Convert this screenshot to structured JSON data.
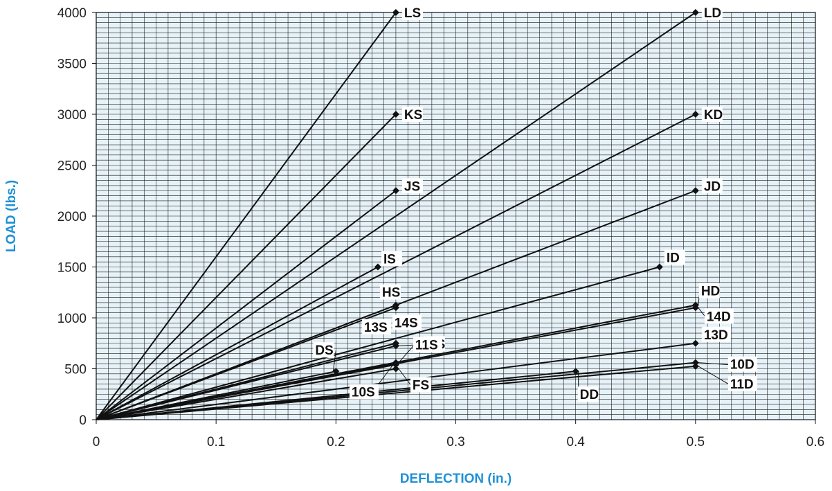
{
  "chart_data": {
    "type": "line",
    "xlabel": "DEFLECTION (in.)",
    "ylabel": "LOAD (lbs.)",
    "xlim": [
      0,
      0.6
    ],
    "ylim": [
      0,
      4000
    ],
    "x_ticks": [
      "0",
      "0.1",
      "0.2",
      "0.3",
      "0.4",
      "0.5",
      "0.6"
    ],
    "y_ticks": [
      "0",
      "500",
      "1000",
      "1500",
      "2000",
      "2500",
      "3000",
      "3500",
      "4000"
    ],
    "grid": true,
    "colors": {
      "plot_background": "#e6f2f8",
      "grid": "#1a1a1a",
      "line": "#111111",
      "axis_title": "#1e90d6"
    },
    "series": [
      {
        "name": "LS",
        "x": [
          0,
          0.25
        ],
        "y": [
          0,
          4000
        ]
      },
      {
        "name": "LD",
        "x": [
          0,
          0.5
        ],
        "y": [
          0,
          4000
        ]
      },
      {
        "name": "KS",
        "x": [
          0,
          0.25
        ],
        "y": [
          0,
          3000
        ]
      },
      {
        "name": "KD",
        "x": [
          0,
          0.5
        ],
        "y": [
          0,
          3000
        ]
      },
      {
        "name": "JS",
        "x": [
          0,
          0.25
        ],
        "y": [
          0,
          2250
        ]
      },
      {
        "name": "JD",
        "x": [
          0,
          0.5
        ],
        "y": [
          0,
          2250
        ]
      },
      {
        "name": "IS",
        "x": [
          0,
          0.235
        ],
        "y": [
          0,
          1500
        ]
      },
      {
        "name": "ID",
        "x": [
          0,
          0.47
        ],
        "y": [
          0,
          1500
        ]
      },
      {
        "name": "HS",
        "x": [
          0,
          0.25
        ],
        "y": [
          0,
          1125
        ]
      },
      {
        "name": "HD",
        "x": [
          0,
          0.5
        ],
        "y": [
          0,
          1125
        ]
      },
      {
        "name": "14S",
        "x": [
          0,
          0.25
        ],
        "y": [
          0,
          1100
        ]
      },
      {
        "name": "14D",
        "x": [
          0,
          0.5
        ],
        "y": [
          0,
          1100
        ]
      },
      {
        "name": "13S",
        "x": [
          0,
          0.25
        ],
        "y": [
          0,
          750
        ]
      },
      {
        "name": "13D",
        "x": [
          0,
          0.5
        ],
        "y": [
          0,
          750
        ]
      },
      {
        "name": "GS",
        "x": [
          0,
          0.25
        ],
        "y": [
          0,
          725
        ]
      },
      {
        "name": "DS",
        "x": [
          0,
          0.2
        ],
        "y": [
          0,
          475
        ]
      },
      {
        "name": "11S",
        "x": [
          0,
          0.25
        ],
        "y": [
          0,
          560
        ]
      },
      {
        "name": "10S",
        "x": [
          0,
          0.25
        ],
        "y": [
          0,
          540
        ]
      },
      {
        "name": "FS",
        "x": [
          0,
          0.25
        ],
        "y": [
          0,
          500
        ]
      },
      {
        "name": "10D",
        "x": [
          0,
          0.5
        ],
        "y": [
          0,
          560
        ]
      },
      {
        "name": "11D",
        "x": [
          0,
          0.5
        ],
        "y": [
          0,
          525
        ]
      },
      {
        "name": "DD",
        "x": [
          0,
          0.4
        ],
        "y": [
          0,
          475
        ]
      }
    ]
  }
}
